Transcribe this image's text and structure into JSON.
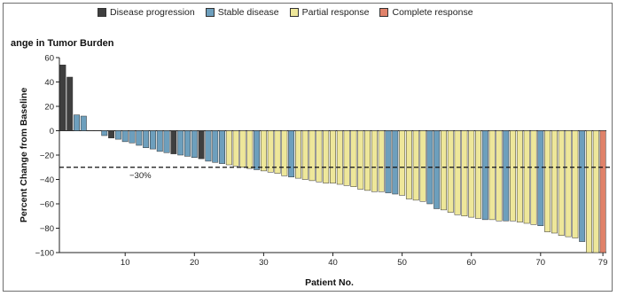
{
  "legend": [
    {
      "label": "Disease progression",
      "color": "#3f3f3f"
    },
    {
      "label": "Stable disease",
      "color": "#6d9fbd"
    },
    {
      "label": "Partial response",
      "color": "#eee79a"
    },
    {
      "label": "Complete response",
      "color": "#e0826a"
    }
  ],
  "chart_data": {
    "type": "bar",
    "title": "ange in Tumor Burden",
    "xlabel": "Patient No.",
    "ylabel": "Percent Change from Baseline",
    "ylim": [
      -100,
      60
    ],
    "yticks": [
      60,
      40,
      20,
      0,
      -20,
      -40,
      -60,
      -80,
      -100
    ],
    "xticks": [
      10,
      20,
      30,
      40,
      50,
      60,
      70,
      79
    ],
    "threshold": {
      "value": -30,
      "label": "−30%"
    },
    "categories": [
      1,
      2,
      3,
      4,
      5,
      6,
      7,
      8,
      9,
      10,
      11,
      12,
      13,
      14,
      15,
      16,
      17,
      18,
      19,
      20,
      21,
      22,
      23,
      24,
      25,
      26,
      27,
      28,
      29,
      30,
      31,
      32,
      33,
      34,
      35,
      36,
      37,
      38,
      39,
      40,
      41,
      42,
      43,
      44,
      45,
      46,
      47,
      48,
      49,
      50,
      51,
      52,
      53,
      54,
      55,
      56,
      57,
      58,
      59,
      60,
      61,
      62,
      63,
      64,
      65,
      66,
      67,
      68,
      69,
      70,
      71,
      72,
      73,
      74,
      75,
      76,
      77,
      78,
      79
    ],
    "values": [
      54,
      44,
      13,
      12,
      0,
      0,
      -4,
      -6,
      -7,
      -9,
      -10,
      -12,
      -14,
      -15,
      -17,
      -18,
      -19,
      -20,
      -21,
      -22,
      -23,
      -25,
      -26,
      -27,
      -28,
      -29,
      -30,
      -31,
      -32,
      -33,
      -34,
      -35,
      -37,
      -38,
      -39,
      -40,
      -41,
      -42,
      -43,
      -43,
      -44,
      -45,
      -46,
      -48,
      -49,
      -50,
      -50,
      -51,
      -52,
      -53,
      -56,
      -57,
      -58,
      -60,
      -64,
      -65,
      -67,
      -69,
      -70,
      -71,
      -72,
      -73,
      -73,
      -74,
      -74,
      -74,
      -75,
      -76,
      -77,
      -78,
      -83,
      -84,
      -86,
      -87,
      -88,
      -91,
      -100,
      -100,
      -100
    ],
    "response": [
      "PD",
      "PD",
      "SD",
      "SD",
      "SD",
      "SD",
      "SD",
      "PD",
      "SD",
      "SD",
      "SD",
      "SD",
      "SD",
      "SD",
      "SD",
      "SD",
      "PD",
      "SD",
      "SD",
      "SD",
      "PD",
      "SD",
      "SD",
      "SD",
      "PR",
      "PR",
      "PR",
      "PR",
      "SD",
      "PR",
      "PR",
      "PR",
      "PR",
      "SD",
      "PR",
      "PR",
      "PR",
      "PR",
      "PR",
      "PR",
      "PR",
      "PR",
      "PR",
      "PR",
      "PR",
      "PR",
      "PR",
      "SD",
      "SD",
      "PR",
      "PR",
      "PR",
      "PR",
      "SD",
      "SD",
      "PR",
      "PR",
      "PR",
      "PR",
      "PR",
      "PR",
      "SD",
      "PR",
      "PR",
      "SD",
      "PR",
      "PR",
      "PR",
      "PR",
      "SD",
      "PR",
      "PR",
      "PR",
      "PR",
      "PR",
      "SD",
      "PR",
      "PR",
      "CR"
    ],
    "response_colors": {
      "PD": "#3f3f3f",
      "SD": "#6d9fbd",
      "PR": "#eee79a",
      "CR": "#e0826a"
    }
  }
}
